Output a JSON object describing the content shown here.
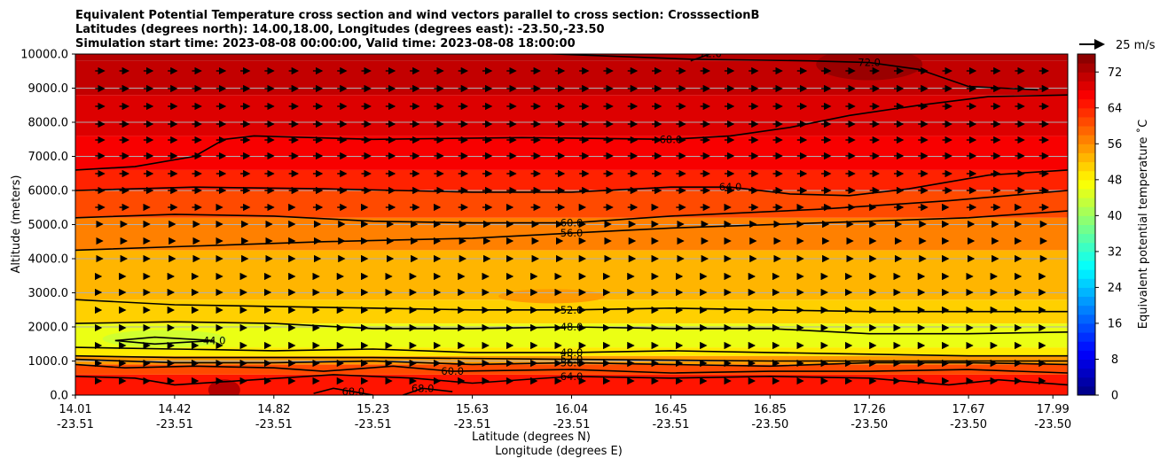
{
  "chart_data": {
    "type": "contourf",
    "title_lines": [
      "Equivalent Potential Temperature cross section and wind vectors parallel to cross section: CrosssectionB",
      "Latitudes (degrees north): 14.00,18.00, Longitudes (degrees east): -23.50,-23.50",
      "Simulation start time: 2023-08-08 00:00:00, Valid time: 2023-08-08 18:00:00"
    ],
    "ylabel": "Altitude (meters)",
    "xlabel_lat": "Latitude (degrees N)",
    "xlabel_lon": "Longitude (degrees E)",
    "ylim": [
      0,
      10000
    ],
    "yticks": [
      "0.0",
      "1000.0",
      "2000.0",
      "3000.0",
      "4000.0",
      "5000.0",
      "6000.0",
      "7000.0",
      "8000.0",
      "9000.0",
      "10000.0"
    ],
    "xticks": [
      {
        "lat": "14.01",
        "lon": "-23.51",
        "frac": 0.0
      },
      {
        "lat": "14.42",
        "lon": "-23.51",
        "frac": 0.1
      },
      {
        "lat": "14.82",
        "lon": "-23.51",
        "frac": 0.2
      },
      {
        "lat": "15.23",
        "lon": "-23.51",
        "frac": 0.3
      },
      {
        "lat": "15.63",
        "lon": "-23.51",
        "frac": 0.4
      },
      {
        "lat": "16.04",
        "lon": "-23.51",
        "frac": 0.5
      },
      {
        "lat": "16.45",
        "lon": "-23.51",
        "frac": 0.6
      },
      {
        "lat": "16.85",
        "lon": "-23.50",
        "frac": 0.7
      },
      {
        "lat": "17.26",
        "lon": "-23.50",
        "frac": 0.8
      },
      {
        "lat": "17.67",
        "lon": "-23.50",
        "frac": 0.9
      },
      {
        "lat": "17.99",
        "lon": "-23.50",
        "frac": 0.985
      }
    ],
    "colorbar": {
      "label": "Equivalent potential temperature $^\\circ$C",
      "label_text": "Equivalent potential temperature ˚C",
      "min": 0,
      "max": 76,
      "step": 2,
      "ticks": [
        "0",
        "8",
        "16",
        "24",
        "32",
        "40",
        "48",
        "56",
        "64",
        "72"
      ]
    },
    "quiver_key": {
      "label": "25 m/s"
    },
    "contours": [
      {
        "level": "72.0",
        "pts": [
          [
            0.44,
            10050
          ],
          [
            0.62,
            9850
          ],
          [
            0.74,
            9800
          ],
          [
            0.8,
            9750
          ],
          [
            0.85,
            9550
          ],
          [
            0.9,
            9050
          ],
          [
            0.97,
            8950
          ]
        ]
      },
      {
        "level": "72.0",
        "pts": [
          [
            0.62,
            9800
          ],
          [
            0.64,
            10010
          ]
        ]
      },
      {
        "level": "68.0",
        "pts": [
          [
            0,
            6600
          ],
          [
            0.06,
            6700
          ],
          [
            0.12,
            7000
          ],
          [
            0.15,
            7500
          ],
          [
            0.18,
            7600
          ],
          [
            0.3,
            7500
          ],
          [
            0.45,
            7550
          ],
          [
            0.6,
            7500
          ],
          [
            0.66,
            7600
          ],
          [
            0.72,
            7850
          ],
          [
            0.78,
            8200
          ],
          [
            0.85,
            8500
          ],
          [
            0.92,
            8750
          ],
          [
            1,
            8800
          ]
        ]
      },
      {
        "level": "64.0",
        "pts": [
          [
            0,
            6000
          ],
          [
            0.12,
            6100
          ],
          [
            0.25,
            6050
          ],
          [
            0.4,
            5950
          ],
          [
            0.5,
            5950
          ],
          [
            0.6,
            6100
          ],
          [
            0.66,
            6100
          ],
          [
            0.72,
            5900
          ],
          [
            0.78,
            5850
          ],
          [
            0.84,
            6050
          ],
          [
            0.92,
            6450
          ],
          [
            1,
            6600
          ]
        ]
      },
      {
        "level": "60.0",
        "pts": [
          [
            0,
            5200
          ],
          [
            0.1,
            5300
          ],
          [
            0.2,
            5250
          ],
          [
            0.3,
            5100
          ],
          [
            0.4,
            5050
          ],
          [
            0.5,
            5050
          ],
          [
            0.6,
            5250
          ],
          [
            0.75,
            5450
          ],
          [
            0.88,
            5700
          ],
          [
            1,
            6000
          ]
        ]
      },
      {
        "level": "56.0",
        "pts": [
          [
            0,
            4250
          ],
          [
            0.1,
            4350
          ],
          [
            0.25,
            4500
          ],
          [
            0.4,
            4600
          ],
          [
            0.5,
            4750
          ],
          [
            0.6,
            4900
          ],
          [
            0.75,
            5050
          ],
          [
            0.9,
            5200
          ],
          [
            1,
            5400
          ]
        ]
      },
      {
        "level": "52.0",
        "pts": [
          [
            0,
            2800
          ],
          [
            0.1,
            2650
          ],
          [
            0.2,
            2600
          ],
          [
            0.3,
            2550
          ],
          [
            0.4,
            2500
          ],
          [
            0.5,
            2500
          ],
          [
            0.6,
            2550
          ],
          [
            0.7,
            2500
          ],
          [
            0.8,
            2450
          ],
          [
            0.9,
            2450
          ],
          [
            1,
            2450
          ]
        ]
      },
      {
        "level": "48.0",
        "pts": [
          [
            0,
            2100
          ],
          [
            0.1,
            2150
          ],
          [
            0.2,
            2100
          ],
          [
            0.3,
            1950
          ],
          [
            0.4,
            1950
          ],
          [
            0.5,
            2000
          ],
          [
            0.6,
            1950
          ],
          [
            0.7,
            1950
          ],
          [
            0.8,
            1800
          ],
          [
            0.9,
            1800
          ],
          [
            1,
            1850
          ]
        ]
      },
      {
        "level": "44.0",
        "pts": [
          [
            0.04,
            1600
          ],
          [
            0.08,
            1700
          ],
          [
            0.14,
            1600
          ],
          [
            0.08,
            1500
          ],
          [
            0.04,
            1600
          ]
        ]
      },
      {
        "level": "48.0",
        "pts": [
          [
            0,
            1400
          ],
          [
            0.1,
            1350
          ],
          [
            0.2,
            1300
          ],
          [
            0.3,
            1350
          ],
          [
            0.4,
            1250
          ],
          [
            0.5,
            1250
          ],
          [
            0.6,
            1300
          ],
          [
            0.7,
            1250
          ],
          [
            0.8,
            1200
          ],
          [
            0.9,
            1150
          ],
          [
            1,
            1150
          ]
        ]
      },
      {
        "level": "52.0",
        "pts": [
          [
            0,
            1150
          ],
          [
            0.1,
            1100
          ],
          [
            0.3,
            1100
          ],
          [
            0.5,
            1050
          ],
          [
            0.7,
            1000
          ],
          [
            0.9,
            1000
          ],
          [
            1,
            1000
          ]
        ]
      },
      {
        "level": "56.0",
        "pts": [
          [
            0,
            1050
          ],
          [
            0.1,
            950
          ],
          [
            0.2,
            950
          ],
          [
            0.3,
            1000
          ],
          [
            0.4,
            900
          ],
          [
            0.5,
            950
          ],
          [
            0.6,
            900
          ],
          [
            0.7,
            850
          ],
          [
            0.8,
            950
          ],
          [
            0.9,
            950
          ],
          [
            1,
            900
          ]
        ]
      },
      {
        "level": "60.0",
        "pts": [
          [
            0,
            900
          ],
          [
            0.05,
            800
          ],
          [
            0.12,
            850
          ],
          [
            0.2,
            800
          ],
          [
            0.25,
            700
          ],
          [
            0.32,
            850
          ],
          [
            0.38,
            700
          ],
          [
            0.5,
            750
          ],
          [
            0.6,
            650
          ],
          [
            0.7,
            700
          ],
          [
            0.8,
            700
          ],
          [
            0.9,
            750
          ],
          [
            1,
            650
          ]
        ]
      },
      {
        "level": "64.0",
        "pts": [
          [
            0,
            550
          ],
          [
            0.06,
            500
          ],
          [
            0.1,
            300
          ],
          [
            0.18,
            450
          ],
          [
            0.26,
            600
          ],
          [
            0.34,
            500
          ],
          [
            0.4,
            350
          ],
          [
            0.5,
            550
          ],
          [
            0.6,
            500
          ],
          [
            0.7,
            550
          ],
          [
            0.8,
            500
          ],
          [
            0.88,
            300
          ],
          [
            0.93,
            450
          ],
          [
            1,
            300
          ]
        ]
      },
      {
        "level": "68.0",
        "pts": [
          [
            0.24,
            50
          ],
          [
            0.26,
            200
          ],
          [
            0.28,
            100
          ],
          [
            0.3,
            0
          ]
        ]
      },
      {
        "level": "68.0",
        "pts": [
          [
            0.33,
            0
          ],
          [
            0.35,
            200
          ],
          [
            0.38,
            100
          ]
        ]
      }
    ]
  }
}
